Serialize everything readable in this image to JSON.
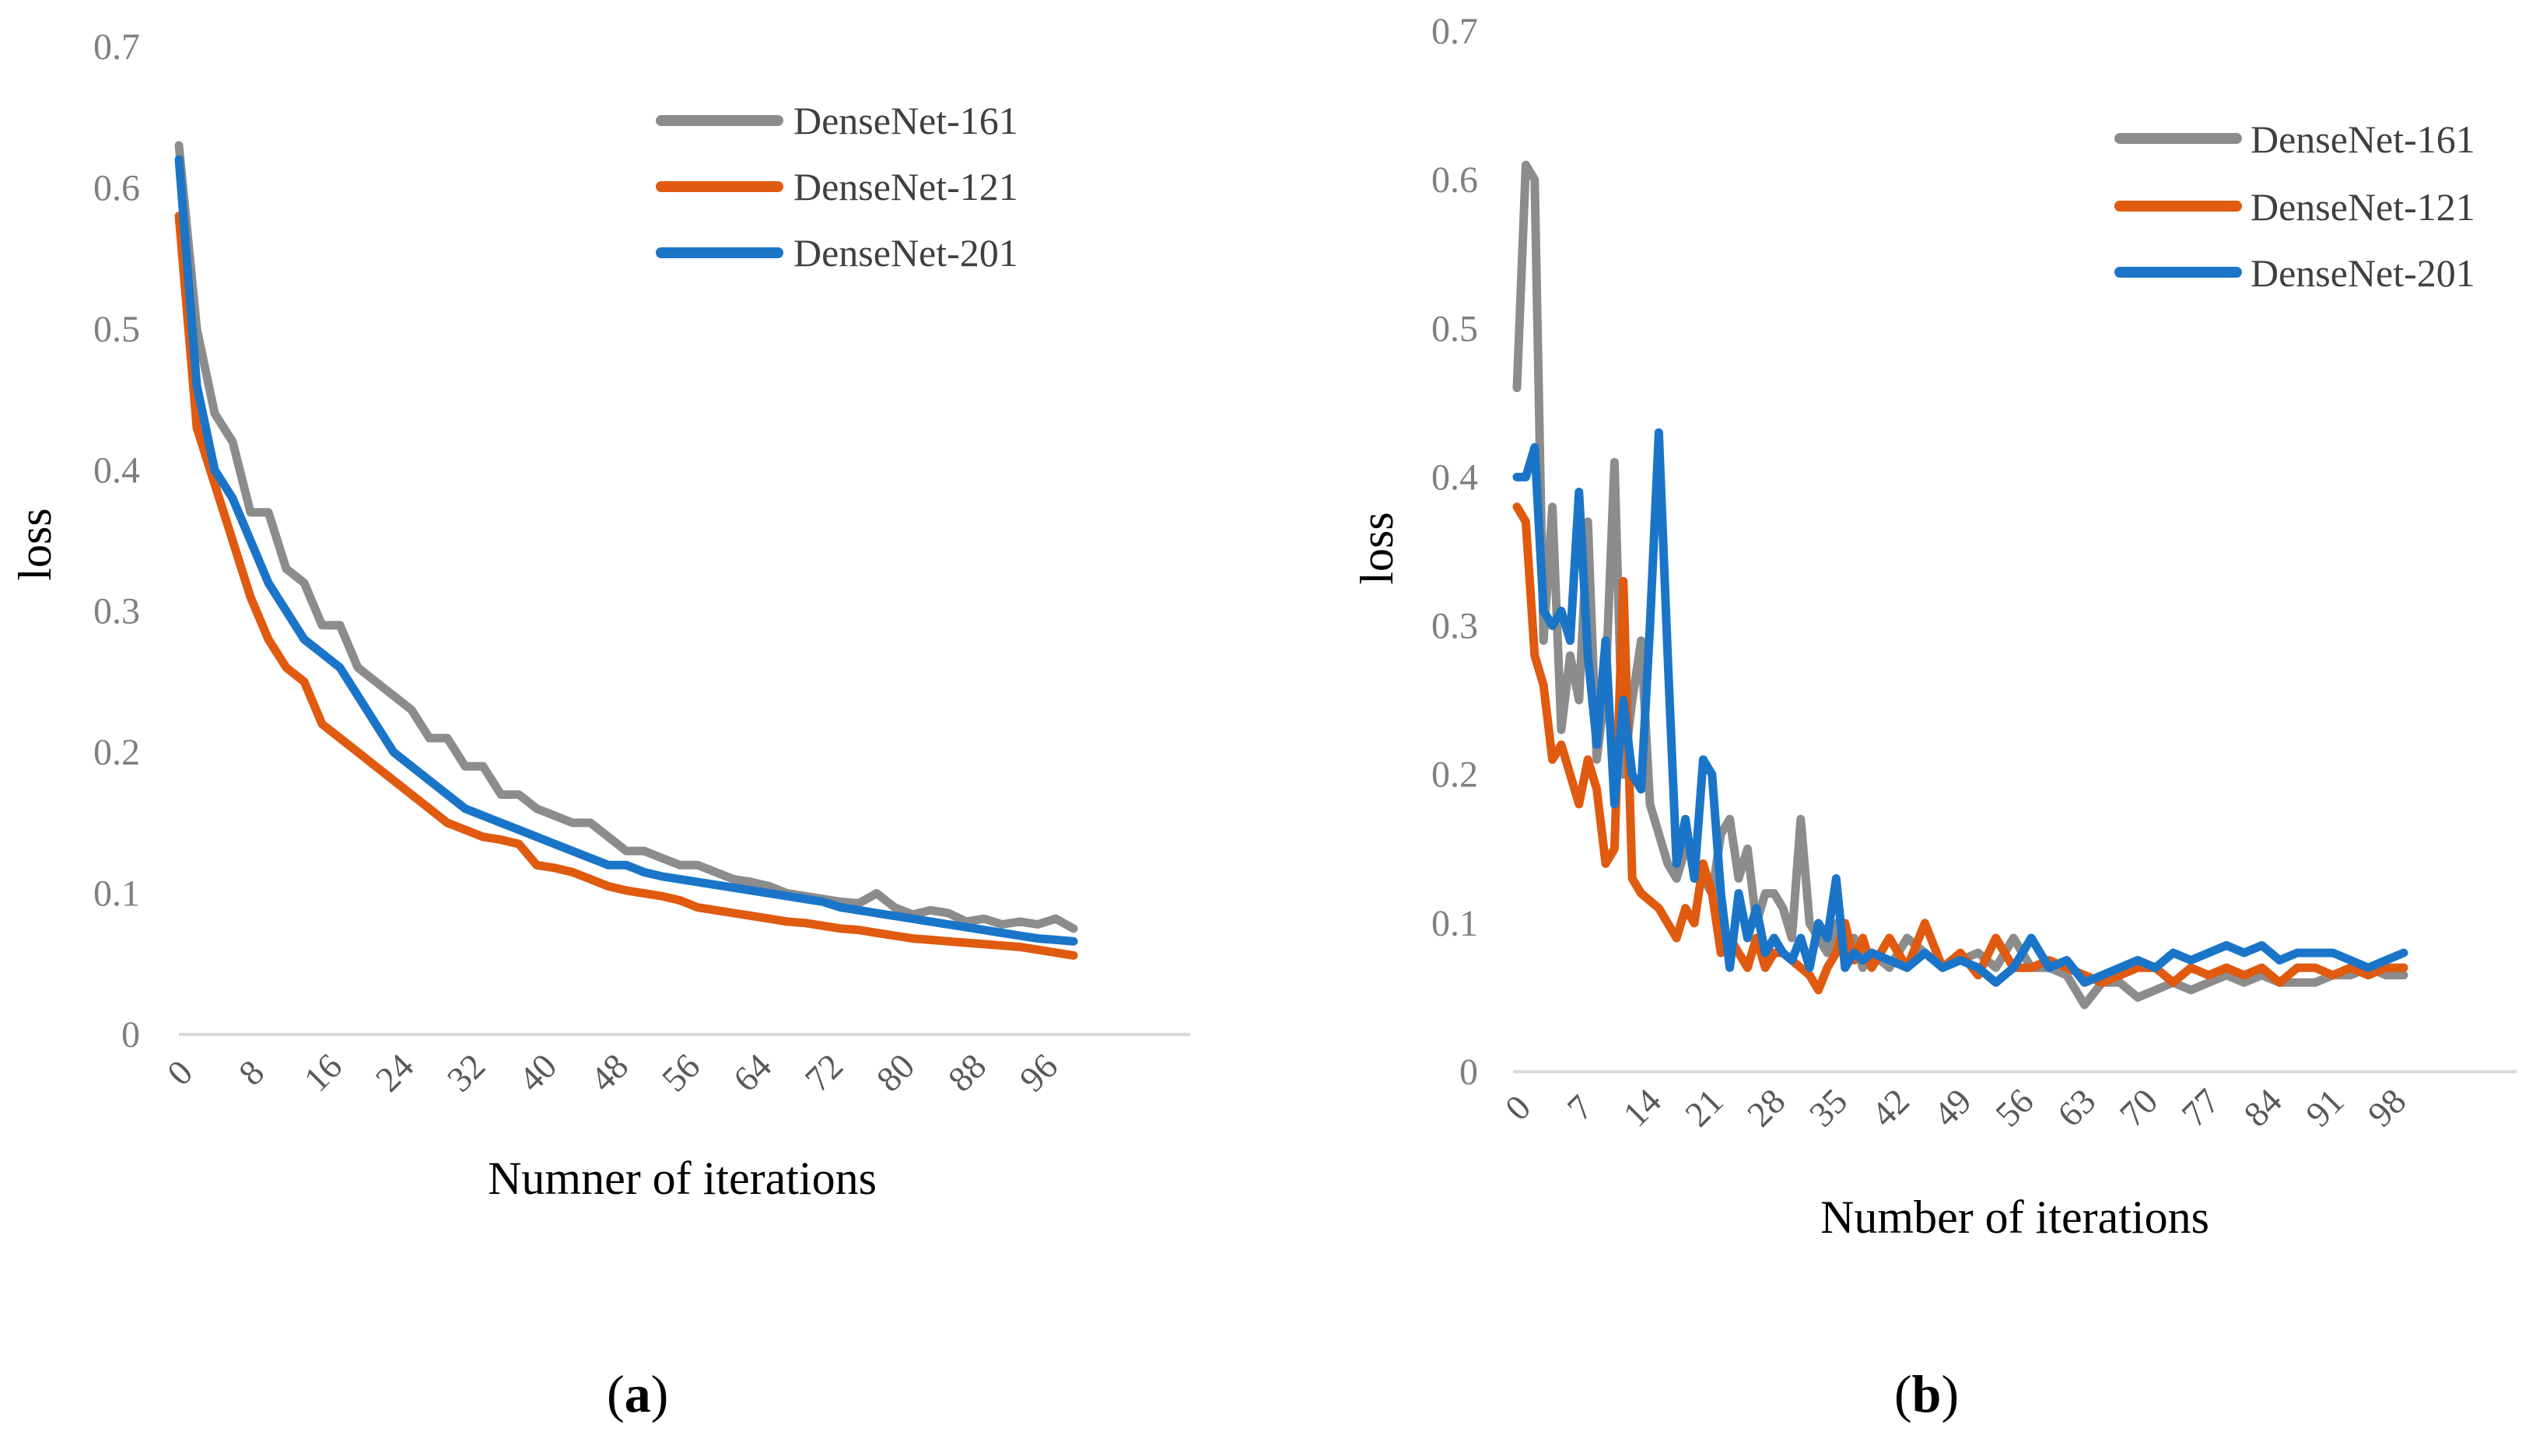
{
  "chart_data": [
    {
      "type": "line",
      "panel_label": "a",
      "xlabel": "Numner of iterations",
      "ylabel": "loss",
      "ylim": [
        0,
        0.7
      ],
      "yticks": [
        "0",
        "0.1",
        "0.2",
        "0.3",
        "0.4",
        "0.5",
        "0.6",
        "0.7"
      ],
      "xlim": [
        0,
        100
      ],
      "xticks": [
        "0",
        "8",
        "16",
        "24",
        "32",
        "40",
        "48",
        "56",
        "64",
        "72",
        "80",
        "88",
        "96"
      ],
      "legend": "top-right",
      "grid": false,
      "series": [
        {
          "name": "DenseNet-161",
          "color": "#8c8c8c",
          "x": [
            0,
            2,
            4,
            6,
            8,
            10,
            12,
            14,
            16,
            18,
            20,
            22,
            24,
            26,
            28,
            30,
            32,
            34,
            36,
            38,
            40,
            42,
            44,
            46,
            48,
            50,
            52,
            54,
            56,
            58,
            60,
            62,
            64,
            66,
            68,
            70,
            72,
            74,
            76,
            78,
            80,
            82,
            84,
            86,
            88,
            90,
            92,
            94,
            96,
            98,
            100
          ],
          "y": [
            0.63,
            0.5,
            0.44,
            0.42,
            0.37,
            0.37,
            0.33,
            0.32,
            0.29,
            0.29,
            0.26,
            0.25,
            0.24,
            0.23,
            0.21,
            0.21,
            0.19,
            0.19,
            0.17,
            0.17,
            0.16,
            0.155,
            0.15,
            0.15,
            0.14,
            0.13,
            0.13,
            0.125,
            0.12,
            0.12,
            0.115,
            0.11,
            0.108,
            0.105,
            0.1,
            0.098,
            0.096,
            0.094,
            0.093,
            0.1,
            0.09,
            0.085,
            0.088,
            0.086,
            0.08,
            0.082,
            0.078,
            0.08,
            0.078,
            0.082,
            0.075
          ]
        },
        {
          "name": "DenseNet-121",
          "color": "#e05a0f",
          "x": [
            0,
            2,
            4,
            6,
            8,
            10,
            12,
            14,
            16,
            18,
            20,
            22,
            24,
            26,
            28,
            30,
            32,
            34,
            36,
            38,
            40,
            42,
            44,
            46,
            48,
            50,
            52,
            54,
            56,
            58,
            60,
            62,
            64,
            66,
            68,
            70,
            72,
            74,
            76,
            78,
            80,
            82,
            84,
            86,
            88,
            90,
            92,
            94,
            96,
            98,
            100
          ],
          "y": [
            0.58,
            0.43,
            0.39,
            0.35,
            0.31,
            0.28,
            0.26,
            0.25,
            0.22,
            0.21,
            0.2,
            0.19,
            0.18,
            0.17,
            0.16,
            0.15,
            0.145,
            0.14,
            0.138,
            0.135,
            0.12,
            0.118,
            0.115,
            0.11,
            0.105,
            0.102,
            0.1,
            0.098,
            0.095,
            0.09,
            0.088,
            0.086,
            0.084,
            0.082,
            0.08,
            0.079,
            0.077,
            0.075,
            0.074,
            0.072,
            0.07,
            0.068,
            0.067,
            0.066,
            0.065,
            0.064,
            0.063,
            0.062,
            0.06,
            0.058,
            0.056
          ]
        },
        {
          "name": "DenseNet-201",
          "color": "#1a75c9",
          "x": [
            0,
            2,
            4,
            6,
            8,
            10,
            12,
            14,
            16,
            18,
            20,
            22,
            24,
            26,
            28,
            30,
            32,
            34,
            36,
            38,
            40,
            42,
            44,
            46,
            48,
            50,
            52,
            54,
            56,
            58,
            60,
            62,
            64,
            66,
            68,
            70,
            72,
            74,
            76,
            78,
            80,
            82,
            84,
            86,
            88,
            90,
            92,
            94,
            96,
            98,
            100
          ],
          "y": [
            0.62,
            0.46,
            0.4,
            0.38,
            0.35,
            0.32,
            0.3,
            0.28,
            0.27,
            0.26,
            0.24,
            0.22,
            0.2,
            0.19,
            0.18,
            0.17,
            0.16,
            0.155,
            0.15,
            0.145,
            0.14,
            0.135,
            0.13,
            0.125,
            0.12,
            0.12,
            0.115,
            0.112,
            0.11,
            0.108,
            0.106,
            0.104,
            0.102,
            0.1,
            0.098,
            0.096,
            0.094,
            0.09,
            0.088,
            0.086,
            0.084,
            0.082,
            0.08,
            0.078,
            0.076,
            0.074,
            0.072,
            0.07,
            0.068,
            0.067,
            0.066
          ]
        }
      ]
    },
    {
      "type": "line",
      "panel_label": "b",
      "xlabel": "Number of iterations",
      "ylabel": "loss",
      "ylim": [
        0,
        0.7
      ],
      "yticks": [
        "0",
        "0.1",
        "0.2",
        "0.3",
        "0.4",
        "0.5",
        "0.6",
        "0.7"
      ],
      "xlim": [
        0,
        100
      ],
      "xticks": [
        "0",
        "7",
        "14",
        "21",
        "28",
        "35",
        "42",
        "49",
        "56",
        "63",
        "70",
        "77",
        "84",
        "91",
        "98"
      ],
      "legend": "top-right",
      "grid": false,
      "series": [
        {
          "name": "DenseNet-161",
          "color": "#8c8c8c",
          "x": [
            0,
            1,
            2,
            3,
            4,
            5,
            6,
            7,
            8,
            9,
            10,
            11,
            12,
            13,
            14,
            15,
            16,
            17,
            18,
            19,
            20,
            21,
            22,
            23,
            24,
            25,
            26,
            27,
            28,
            29,
            30,
            31,
            32,
            33,
            34,
            35,
            36,
            37,
            38,
            39,
            40,
            42,
            44,
            46,
            48,
            50,
            52,
            54,
            56,
            58,
            60,
            62,
            64,
            66,
            68,
            70,
            72,
            74,
            76,
            78,
            80,
            82,
            84,
            86,
            88,
            90,
            92,
            94,
            96,
            98,
            100
          ],
          "y": [
            0.46,
            0.61,
            0.6,
            0.29,
            0.38,
            0.23,
            0.28,
            0.25,
            0.37,
            0.21,
            0.26,
            0.41,
            0.2,
            0.25,
            0.29,
            0.18,
            0.16,
            0.14,
            0.13,
            0.15,
            0.14,
            0.13,
            0.12,
            0.16,
            0.17,
            0.13,
            0.15,
            0.1,
            0.12,
            0.12,
            0.11,
            0.09,
            0.17,
            0.1,
            0.09,
            0.08,
            0.1,
            0.08,
            0.09,
            0.07,
            0.08,
            0.07,
            0.09,
            0.08,
            0.07,
            0.075,
            0.08,
            0.07,
            0.09,
            0.07,
            0.07,
            0.065,
            0.045,
            0.06,
            0.06,
            0.05,
            0.055,
            0.06,
            0.055,
            0.06,
            0.065,
            0.06,
            0.065,
            0.06,
            0.06,
            0.06,
            0.065,
            0.065,
            0.07,
            0.065,
            0.065
          ]
        },
        {
          "name": "DenseNet-121",
          "color": "#e05a0f",
          "x": [
            0,
            1,
            2,
            3,
            4,
            5,
            6,
            7,
            8,
            9,
            10,
            11,
            12,
            13,
            14,
            15,
            16,
            17,
            18,
            19,
            20,
            21,
            22,
            23,
            24,
            25,
            26,
            27,
            28,
            29,
            30,
            31,
            32,
            33,
            34,
            35,
            36,
            37,
            38,
            39,
            40,
            42,
            44,
            46,
            48,
            50,
            52,
            54,
            56,
            58,
            60,
            62,
            64,
            66,
            68,
            70,
            72,
            74,
            76,
            78,
            80,
            82,
            84,
            86,
            88,
            90,
            92,
            94,
            96,
            98,
            100
          ],
          "y": [
            0.38,
            0.37,
            0.28,
            0.26,
            0.21,
            0.22,
            0.2,
            0.18,
            0.21,
            0.19,
            0.14,
            0.15,
            0.33,
            0.13,
            0.12,
            0.115,
            0.11,
            0.1,
            0.09,
            0.11,
            0.1,
            0.14,
            0.12,
            0.08,
            0.09,
            0.08,
            0.07,
            0.09,
            0.07,
            0.08,
            0.08,
            0.075,
            0.07,
            0.065,
            0.055,
            0.07,
            0.08,
            0.1,
            0.075,
            0.09,
            0.07,
            0.09,
            0.07,
            0.1,
            0.07,
            0.08,
            0.065,
            0.09,
            0.07,
            0.07,
            0.075,
            0.07,
            0.065,
            0.06,
            0.065,
            0.07,
            0.07,
            0.06,
            0.07,
            0.065,
            0.07,
            0.065,
            0.07,
            0.06,
            0.07,
            0.07,
            0.065,
            0.07,
            0.065,
            0.07,
            0.07
          ]
        },
        {
          "name": "DenseNet-201",
          "color": "#1a75c9",
          "x": [
            0,
            1,
            2,
            3,
            4,
            5,
            6,
            7,
            8,
            9,
            10,
            11,
            12,
            13,
            14,
            15,
            16,
            17,
            18,
            19,
            20,
            21,
            22,
            23,
            24,
            25,
            26,
            27,
            28,
            29,
            30,
            31,
            32,
            33,
            34,
            35,
            36,
            37,
            38,
            39,
            40,
            42,
            44,
            46,
            48,
            50,
            52,
            54,
            56,
            58,
            60,
            62,
            64,
            66,
            68,
            70,
            72,
            74,
            76,
            78,
            80,
            82,
            84,
            86,
            88,
            90,
            92,
            94,
            96,
            98,
            100
          ],
          "y": [
            0.4,
            0.4,
            0.42,
            0.31,
            0.3,
            0.31,
            0.29,
            0.39,
            0.28,
            0.22,
            0.29,
            0.18,
            0.25,
            0.2,
            0.19,
            0.3,
            0.43,
            0.28,
            0.14,
            0.17,
            0.13,
            0.21,
            0.2,
            0.12,
            0.07,
            0.12,
            0.09,
            0.11,
            0.08,
            0.09,
            0.08,
            0.075,
            0.09,
            0.07,
            0.1,
            0.09,
            0.13,
            0.07,
            0.08,
            0.075,
            0.08,
            0.075,
            0.07,
            0.08,
            0.07,
            0.075,
            0.07,
            0.06,
            0.07,
            0.09,
            0.07,
            0.075,
            0.06,
            0.065,
            0.07,
            0.075,
            0.07,
            0.08,
            0.075,
            0.08,
            0.085,
            0.08,
            0.085,
            0.075,
            0.08,
            0.08,
            0.08,
            0.075,
            0.07,
            0.075,
            0.08
          ]
        }
      ]
    }
  ]
}
